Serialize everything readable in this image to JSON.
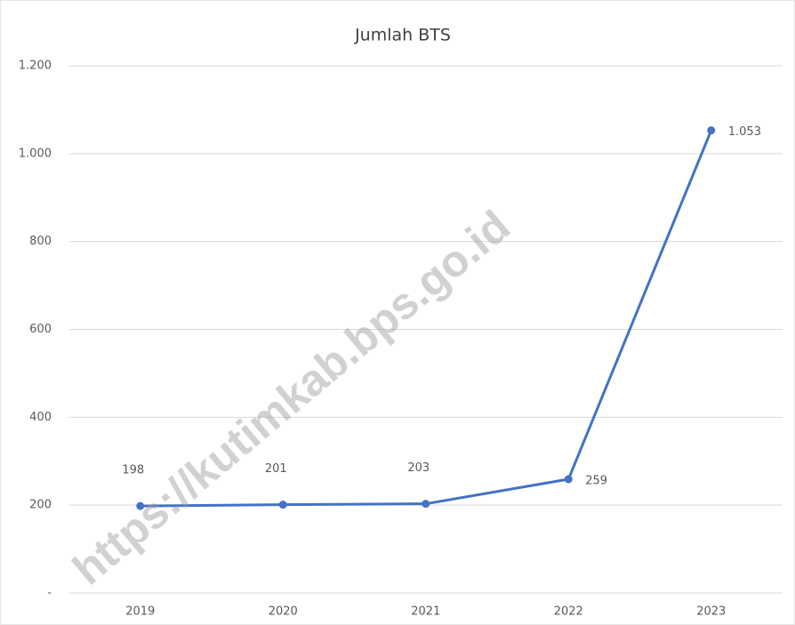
{
  "chart_data": {
    "type": "line",
    "title": "Jumlah BTS",
    "categories": [
      "2019",
      "2020",
      "2021",
      "2022",
      "2023"
    ],
    "series": [
      {
        "name": "Jumlah BTS",
        "color": "#4472c4",
        "values": [
          198,
          201,
          203,
          259,
          1053
        ],
        "value_labels": [
          "198",
          "201",
          "203",
          "259",
          "1.053"
        ]
      }
    ],
    "ylim": [
      0,
      1200
    ],
    "yticks": [
      {
        "value": 0,
        "label": "-"
      },
      200,
      400,
      600,
      800,
      {
        "value": 1000,
        "label": "1.000"
      },
      {
        "value": 1200,
        "label": "1.200"
      }
    ],
    "grid": true,
    "watermark": "https://kutimkab.bps.go.id"
  }
}
